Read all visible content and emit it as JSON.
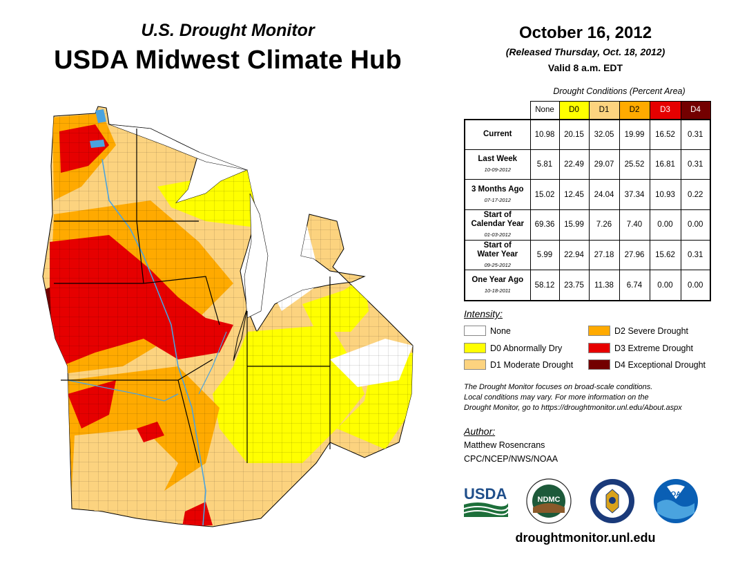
{
  "header": {
    "subtitle": "U.S. Drought Monitor",
    "title": "USDA Midwest Climate Hub"
  },
  "release": {
    "date": "October 16, 2012",
    "released": "(Released Thursday, Oct. 18, 2012)",
    "valid": "Valid 8 a.m. EDT"
  },
  "conditions": {
    "caption": "Drought Conditions (Percent Area)",
    "columns": [
      "None",
      "D0",
      "D1",
      "D2",
      "D3",
      "D4"
    ],
    "rows": [
      {
        "label": "Current",
        "label2": "",
        "date": "",
        "values": [
          "10.98",
          "20.15",
          "32.05",
          "19.99",
          "16.52",
          "0.31"
        ]
      },
      {
        "label": "Last Week",
        "label2": "",
        "date": "10-09-2012",
        "values": [
          "5.81",
          "22.49",
          "29.07",
          "25.52",
          "16.81",
          "0.31"
        ]
      },
      {
        "label": "3 Months Ago",
        "label2": "",
        "date": "07-17-2012",
        "values": [
          "15.02",
          "12.45",
          "24.04",
          "37.34",
          "10.93",
          "0.22"
        ]
      },
      {
        "label": "Start of",
        "label2": "Calendar Year",
        "date": "01-03-2012",
        "values": [
          "69.36",
          "15.99",
          "7.26",
          "7.40",
          "0.00",
          "0.00"
        ]
      },
      {
        "label": "Start of",
        "label2": "Water Year",
        "date": "09-25-2012",
        "values": [
          "5.99",
          "22.94",
          "27.18",
          "27.96",
          "15.62",
          "0.31"
        ]
      },
      {
        "label": "One Year Ago",
        "label2": "",
        "date": "10-18-2011",
        "values": [
          "58.12",
          "23.75",
          "11.38",
          "6.74",
          "0.00",
          "0.00"
        ]
      }
    ]
  },
  "legend": {
    "title": "Intensity:",
    "items": [
      {
        "label": "None",
        "color": "#ffffff"
      },
      {
        "label": "D0 Abnormally Dry",
        "color": "#ffff00"
      },
      {
        "label": "D1 Moderate Drought",
        "color": "#fcd37f"
      },
      {
        "label": "D2 Severe Drought",
        "color": "#ffaa00"
      },
      {
        "label": "D3 Extreme Drought",
        "color": "#e60000"
      },
      {
        "label": "D4 Exceptional Drought",
        "color": "#730000"
      }
    ]
  },
  "note": {
    "line1": "The Drought Monitor focuses on broad-scale conditions.",
    "line2": "Local conditions may vary. For more information on the",
    "line3": "Drought Monitor, go to https://droughtmonitor.unl.edu/About.aspx"
  },
  "author": {
    "label": "Author:",
    "name": "Matthew Rosencrans",
    "org": "CPC/NCEP/NWS/NOAA"
  },
  "logos": {
    "usda": "USDA",
    "ndmc": "NDMC",
    "noaa": "NOAA"
  },
  "footer": {
    "url": "droughtmonitor.unl.edu"
  },
  "colors": {
    "none": "#ffffff",
    "d0": "#ffff00",
    "d1": "#fcd37f",
    "d2": "#ffaa00",
    "d3": "#e60000",
    "d4": "#730000",
    "water": "#4aa3df",
    "usda_green": "#1d6f3a",
    "usda_blue": "#1f4e8a",
    "noaa_blue": "#0a5fb4"
  }
}
